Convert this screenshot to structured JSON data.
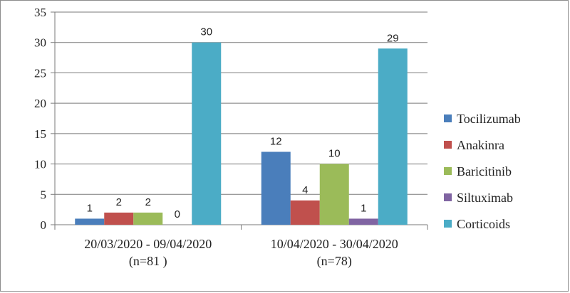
{
  "chart_data": {
    "type": "bar",
    "categories": [
      {
        "line1": "20/03/2020 - 09/04/2020",
        "line2": "(n=81 )"
      },
      {
        "line1": "10/04/2020 - 30/04/2020",
        "line2": "(n=78)"
      }
    ],
    "series": [
      {
        "name": "Tocilizumab",
        "color": "#4a7ebb",
        "values": [
          1,
          12
        ]
      },
      {
        "name": "Anakinra",
        "color": "#c0504d",
        "values": [
          2,
          4
        ]
      },
      {
        "name": "Baricitinib",
        "color": "#9bbb59",
        "values": [
          2,
          10
        ]
      },
      {
        "name": "Siltuximab",
        "color": "#8064a2",
        "values": [
          0,
          1
        ]
      },
      {
        "name": "Corticoids",
        "color": "#4bacc6",
        "values": [
          30,
          29
        ]
      }
    ],
    "y_ticks": [
      0,
      5,
      10,
      15,
      20,
      25,
      30,
      35
    ],
    "ylim": [
      0,
      35
    ],
    "grid": "horizontal",
    "legend": "right",
    "title": "",
    "xlabel": "",
    "ylabel": ""
  }
}
